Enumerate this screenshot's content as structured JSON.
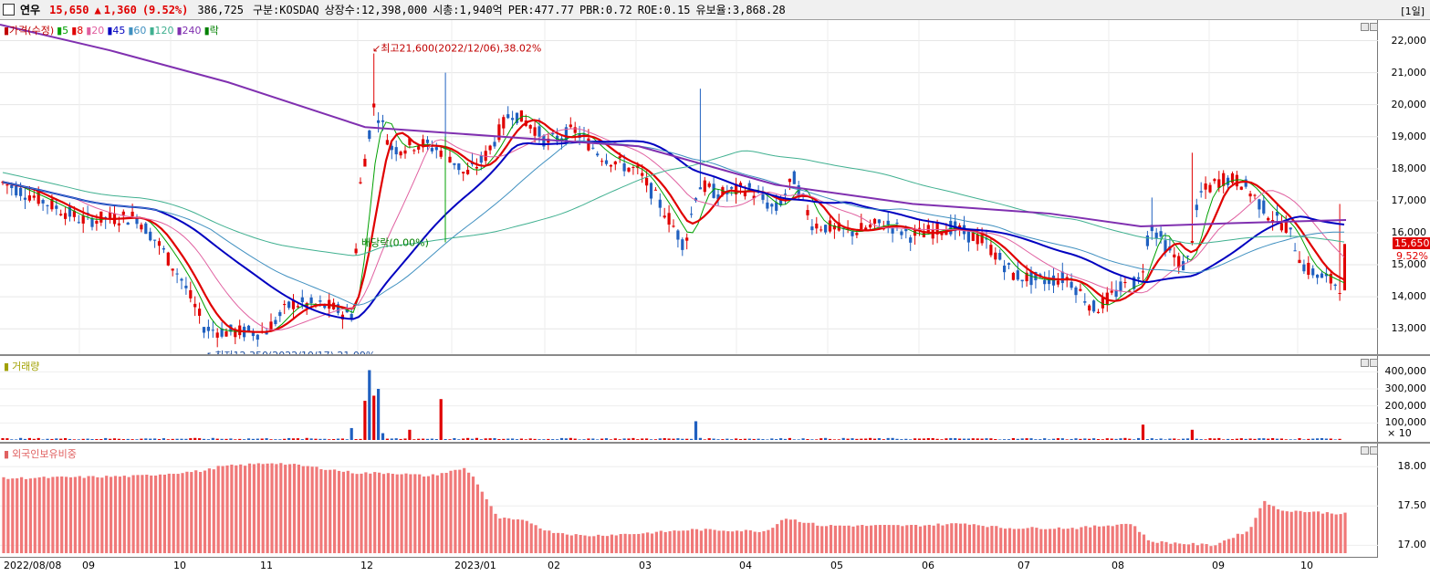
{
  "header": {
    "stock_name": "연우",
    "price": "15,650",
    "change_arrow": "▲",
    "change": "1,360",
    "change_pct": "(9.52%)",
    "volume": "386,725",
    "market": "구분:KOSDAQ",
    "listed_shares": "상장수:12,398,000",
    "market_cap": "시총:1,940억",
    "per": "PER:477.77",
    "pbr": "PBR:0.72",
    "roe": "ROE:0.15",
    "float_ratio": "유보율:3,868.28",
    "period": "[1일]"
  },
  "price_panel": {
    "legend": [
      {
        "label": "가격(수정)",
        "color": "#c00000"
      },
      {
        "label": "5",
        "color": "#00a000"
      },
      {
        "label": "8",
        "color": "#e00000"
      },
      {
        "label": "20",
        "color": "#e060a0"
      },
      {
        "label": "45",
        "color": "#0000c0"
      },
      {
        "label": "60",
        "color": "#4090c0"
      },
      {
        "label": "120",
        "color": "#40b090"
      },
      {
        "label": "240",
        "color": "#8030b0"
      },
      {
        "label": "락",
        "color": "#008000"
      }
    ],
    "high_annotation": "최고21,600(2022/12/06),38.02%",
    "low_annotation": "최저12,350(2022/10/17),21.09%",
    "dividend_annotation": "배당락(0.00%)",
    "y_ticks": [
      "22,000",
      "21,000",
      "20,000",
      "19,000",
      "18,000",
      "17,000",
      "16,000",
      "15,000",
      "14,000",
      "13,000"
    ],
    "current_price_tag": "15,650",
    "current_pct_tag": "9.52%"
  },
  "volume_panel": {
    "legend": "거래량",
    "y_ticks": [
      "400,000",
      "300,000",
      "200,000",
      "100,000"
    ],
    "unit": "× 10"
  },
  "foreign_panel": {
    "legend": "외국인보유비중",
    "y_ticks": [
      "18.00",
      "17.50",
      "17.00"
    ]
  },
  "x_axis": {
    "labels": [
      "2022/08/08",
      "09",
      "10",
      "11",
      "12",
      "2023/01",
      "02",
      "03",
      "04",
      "05",
      "06",
      "07",
      "08",
      "09",
      "10"
    ]
  },
  "colors": {
    "up": "#e00000",
    "down": "#2060c0",
    "ma5": "#00a000",
    "ma8": "#e00000",
    "ma20": "#e060a0",
    "ma45": "#0000c0",
    "ma60": "#4090c0",
    "ma120": "#40b090",
    "ma240": "#8030b0",
    "foreign_bar": "#f07878"
  },
  "chart_data": [
    {
      "type": "candlestick",
      "title": "",
      "x": [
        "2022/08",
        "2022/09",
        "2022/10",
        "2022/11",
        "2022/12",
        "2023/01",
        "2023/02",
        "2023/03",
        "2023/04",
        "2023/05",
        "2023/06",
        "2023/07",
        "2023/08",
        "2023/09",
        "2023/10"
      ],
      "series": [
        {
          "name": "가격(수정)",
          "values": [
            17600,
            16600,
            14000,
            13200,
            18800,
            18300,
            19300,
            17300,
            17200,
            16300,
            15900,
            14700,
            14300,
            17500,
            15200
          ]
        },
        {
          "name": "45",
          "values": [
            17300,
            16600,
            15200,
            13600,
            14600,
            17500,
            18800,
            18200,
            17500,
            16700,
            16300,
            15700,
            14900,
            15000,
            15700
          ]
        },
        {
          "name": "240",
          "values": [
            21900,
            21000,
            20100,
            19500,
            19300,
            19100,
            18900,
            18400,
            17700,
            16900,
            16700,
            16500,
            16300,
            16300,
            16400
          ]
        }
      ],
      "ylim": [
        12350,
        22500
      ],
      "high": 21600,
      "low": 12350
    },
    {
      "type": "bar",
      "title": "",
      "ylim": [
        0,
        450000
      ],
      "annotations": [
        "× 10"
      ],
      "values_peak": 410000
    },
    {
      "type": "bar",
      "title": "",
      "ylim": [
        16.9,
        18.2
      ],
      "x": [
        "2022/08",
        "2022/09",
        "2022/10",
        "2022/11",
        "2022/12",
        "2023/01",
        "2023/02",
        "2023/03",
        "2023/04",
        "2023/05",
        "2023/06",
        "2023/07",
        "2023/08",
        "2023/09",
        "2023/10"
      ],
      "values": [
        17.85,
        17.85,
        17.85,
        18.05,
        17.95,
        17.9,
        17.18,
        17.15,
        17.2,
        17.25,
        17.25,
        17.25,
        17.12,
        17.25,
        17.42
      ]
    }
  ]
}
